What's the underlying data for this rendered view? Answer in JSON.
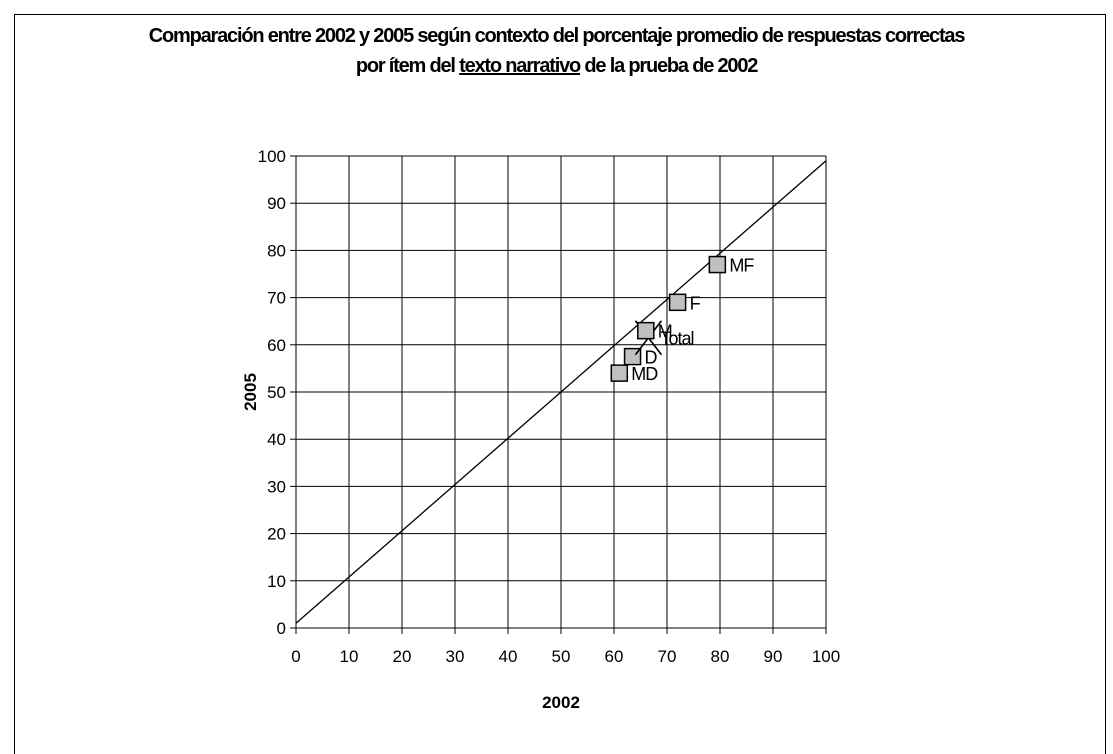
{
  "chart_data": {
    "type": "scatter",
    "title_line1": "Comparación entre 2002 y 2005 según contexto del porcentaje promedio de respuestas correctas",
    "title_line2_pre": "por ítem del ",
    "title_line2_underlined": "texto narrativo",
    "title_line2_post": " de la prueba de 2002",
    "xlabel": "2002",
    "ylabel": "2005",
    "xlim": [
      0,
      100
    ],
    "ylim": [
      0,
      100
    ],
    "xticks": [
      "0",
      "10",
      "20",
      "30",
      "40",
      "50",
      "60",
      "70",
      "80",
      "90",
      "100"
    ],
    "yticks": [
      "0",
      "10",
      "20",
      "30",
      "40",
      "50",
      "60",
      "70",
      "80",
      "90",
      "100"
    ],
    "grid": true,
    "reference_line": {
      "x": [
        0,
        100
      ],
      "y": [
        1,
        99
      ]
    },
    "points": [
      {
        "label": "MF",
        "x": 79.5,
        "y": 77,
        "marker": "square"
      },
      {
        "label": "F",
        "x": 72,
        "y": 69,
        "marker": "square"
      },
      {
        "label": "D",
        "x": 63.5,
        "y": 57.5,
        "marker": "square"
      },
      {
        "label": "MD",
        "x": 61,
        "y": 54,
        "marker": "square"
      },
      {
        "label": "Total",
        "x": 66.5,
        "y": 61.5,
        "marker": "x"
      },
      {
        "label": "M",
        "x": 66,
        "y": 63,
        "marker": "square"
      }
    ],
    "colors": {
      "marker_fill": "#c0c0c0",
      "line": "#000000",
      "grid": "#000000"
    }
  }
}
